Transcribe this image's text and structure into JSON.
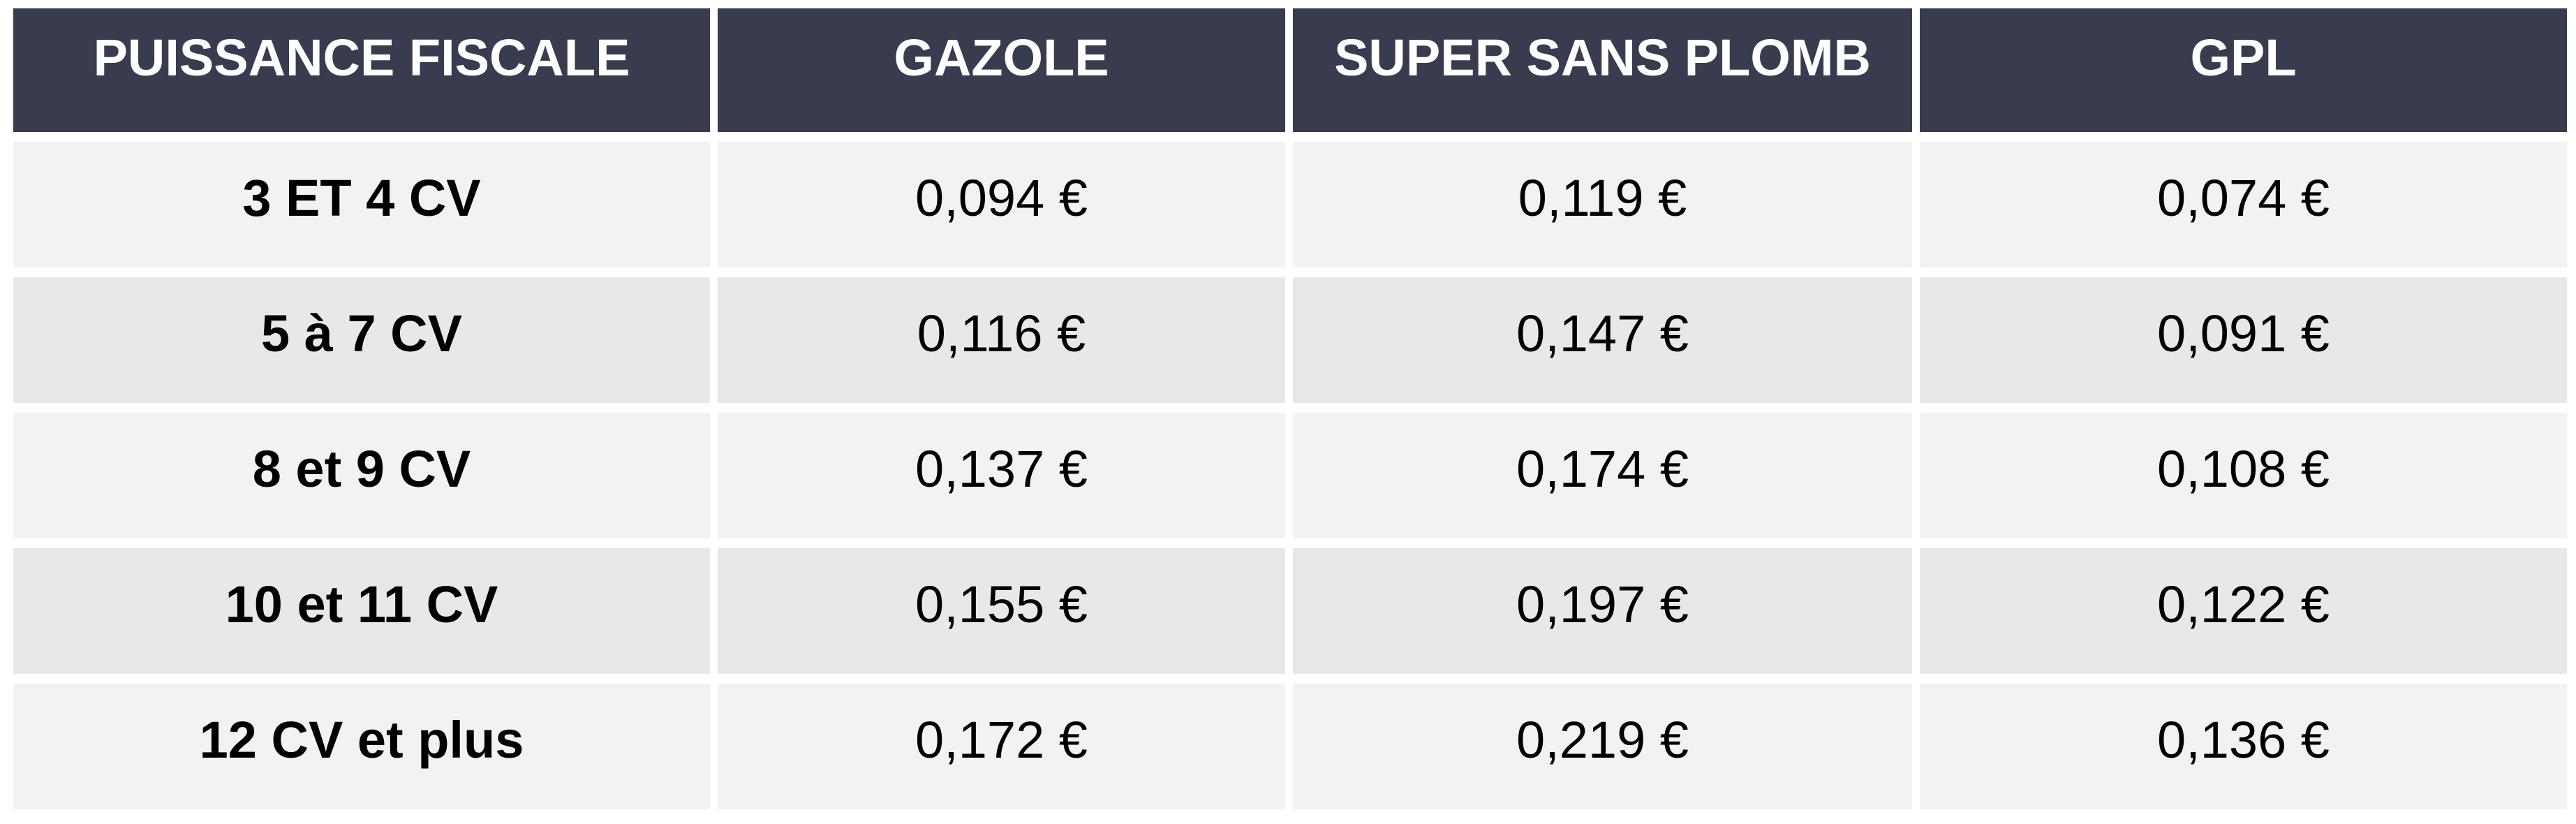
{
  "table": {
    "header": [
      "PUISSANCE FISCALE",
      "GAZOLE",
      "SUPER SANS PLOMB",
      "GPL"
    ],
    "rows": [
      [
        "3 ET 4 CV",
        "0,094 €",
        "0,119 €",
        "0,074 €"
      ],
      [
        "5 à 7 CV",
        "0,116 €",
        "0,147 €",
        "0,091 €"
      ],
      [
        "8 et 9 CV",
        "0,137 €",
        "0,174 €",
        "0,108 €"
      ],
      [
        "10 et 11 CV",
        "0,155 €",
        "0,197 €",
        "0,122 €"
      ],
      [
        "12 CV et plus",
        "0,172 €",
        "0,219 €",
        "0,136 €"
      ]
    ]
  }
}
